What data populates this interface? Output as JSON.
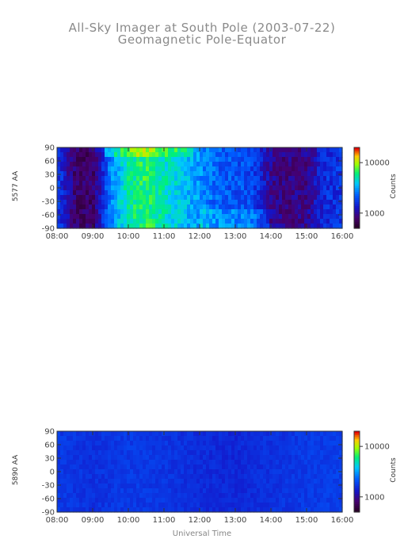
{
  "header": {
    "title": "All-Sky Imager at South Pole (2003-07-22)",
    "subtitle": "Geomagnetic Pole-Equator"
  },
  "chart_data": [
    {
      "type": "heatmap",
      "ylabel": "5577 AA",
      "xlabel": "",
      "x_ticks": [
        "08:00",
        "09:00",
        "10:00",
        "11:00",
        "12:00",
        "13:00",
        "14:00",
        "15:00",
        "16:00"
      ],
      "xlim": [
        8,
        16
      ],
      "y_ticks": [
        90,
        60,
        30,
        0,
        -30,
        -60,
        -90
      ],
      "ylim": [
        -90,
        90
      ],
      "colorbar": {
        "label": "Counts",
        "ticks": [
          "10000",
          "1000"
        ],
        "scale": "log",
        "range": [
          500,
          20000
        ]
      },
      "intensity_by_hour": [
        {
          "x": 8.0,
          "level": 0.35
        },
        {
          "x": 8.5,
          "level": 0.12
        },
        {
          "x": 9.0,
          "level": 0.1
        },
        {
          "x": 9.5,
          "level": 0.45
        },
        {
          "x": 10.0,
          "level": 0.65
        },
        {
          "x": 10.5,
          "level": 0.7
        },
        {
          "x": 11.0,
          "level": 0.62
        },
        {
          "x": 11.5,
          "level": 0.55
        },
        {
          "x": 12.0,
          "level": 0.48
        },
        {
          "x": 12.5,
          "level": 0.4
        },
        {
          "x": 13.0,
          "level": 0.38
        },
        {
          "x": 13.5,
          "level": 0.36
        },
        {
          "x": 14.0,
          "level": 0.18
        },
        {
          "x": 14.5,
          "level": 0.14
        },
        {
          "x": 15.0,
          "level": 0.16
        },
        {
          "x": 15.5,
          "level": 0.3
        },
        {
          "x": 16.0,
          "level": 0.32
        }
      ]
    },
    {
      "type": "heatmap",
      "ylabel": "5890 AA",
      "xlabel": "Universal Time",
      "x_ticks": [
        "08:00",
        "09:00",
        "10:00",
        "11:00",
        "12:00",
        "13:00",
        "14:00",
        "15:00",
        "16:00"
      ],
      "xlim": [
        8,
        16
      ],
      "y_ticks": [
        90,
        60,
        30,
        0,
        -30,
        -60,
        -90
      ],
      "ylim": [
        -90,
        90
      ],
      "colorbar": {
        "label": "Counts",
        "ticks": [
          "10000",
          "1000"
        ],
        "scale": "log",
        "range": [
          500,
          20000
        ]
      },
      "intensity_by_hour": [
        {
          "x": 8.0,
          "level": 0.33
        },
        {
          "x": 9.0,
          "level": 0.31
        },
        {
          "x": 10.0,
          "level": 0.33
        },
        {
          "x": 11.0,
          "level": 0.32
        },
        {
          "x": 12.0,
          "level": 0.3
        },
        {
          "x": 13.0,
          "level": 0.29
        },
        {
          "x": 14.0,
          "level": 0.31
        },
        {
          "x": 15.0,
          "level": 0.33
        },
        {
          "x": 16.0,
          "level": 0.34
        }
      ]
    }
  ]
}
